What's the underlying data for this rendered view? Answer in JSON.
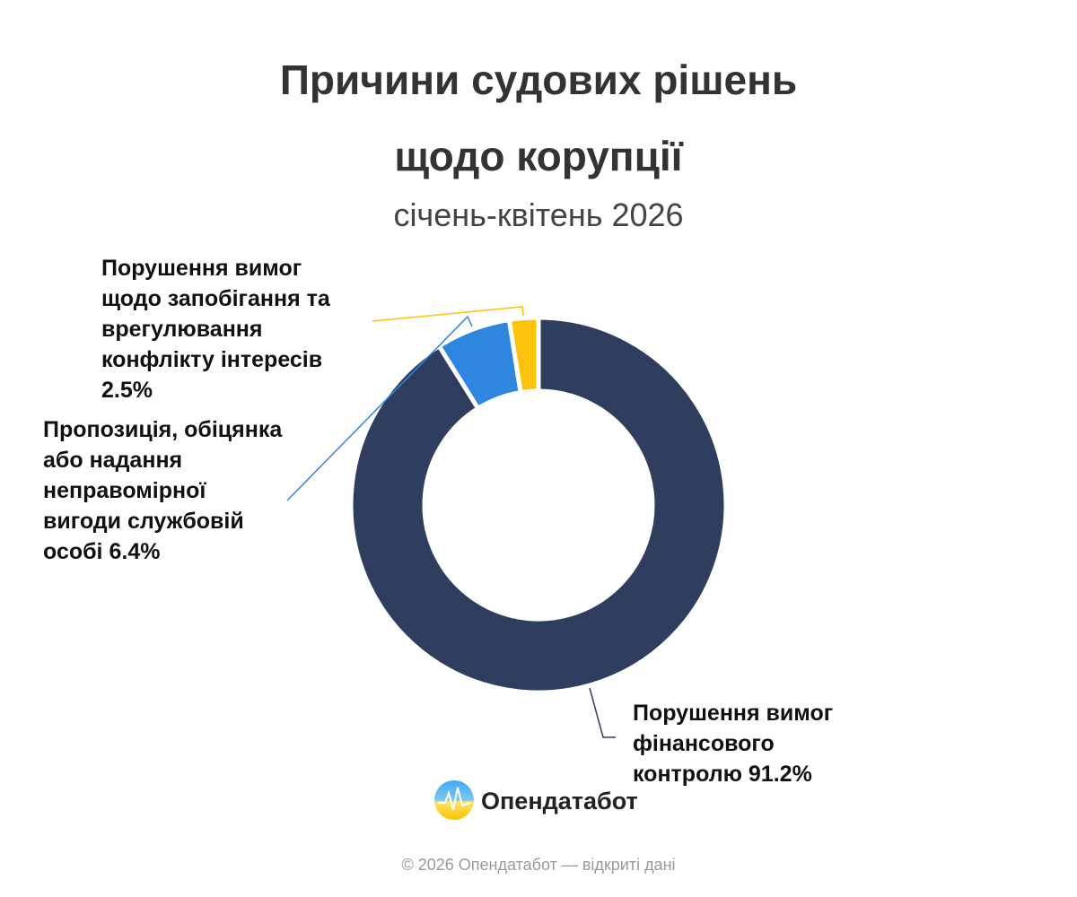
{
  "chart_data": {
    "type": "donut",
    "title": [
      "Причини судових рішень",
      "щодо корупції"
    ],
    "subtitle": "січень-квітень 2026",
    "categories": [
      "Порушення вимог фінансового контролю",
      "Пропозиція, обіцянка або надання неправомірної вигоди службовій особі",
      "Порушення вимог щодо запобігання та врегулювання конфлікту інтересів"
    ],
    "values": [
      91.2,
      6.4,
      2.5
    ],
    "value_labels": [
      "91.2%",
      "6.4%",
      "2.5%"
    ],
    "colors": [
      "#2f3e5e",
      "#2e86de",
      "#fbc30c"
    ]
  },
  "brand": "Опендатабот",
  "footer": "© 2026 Опендатабот — відкриті дані"
}
